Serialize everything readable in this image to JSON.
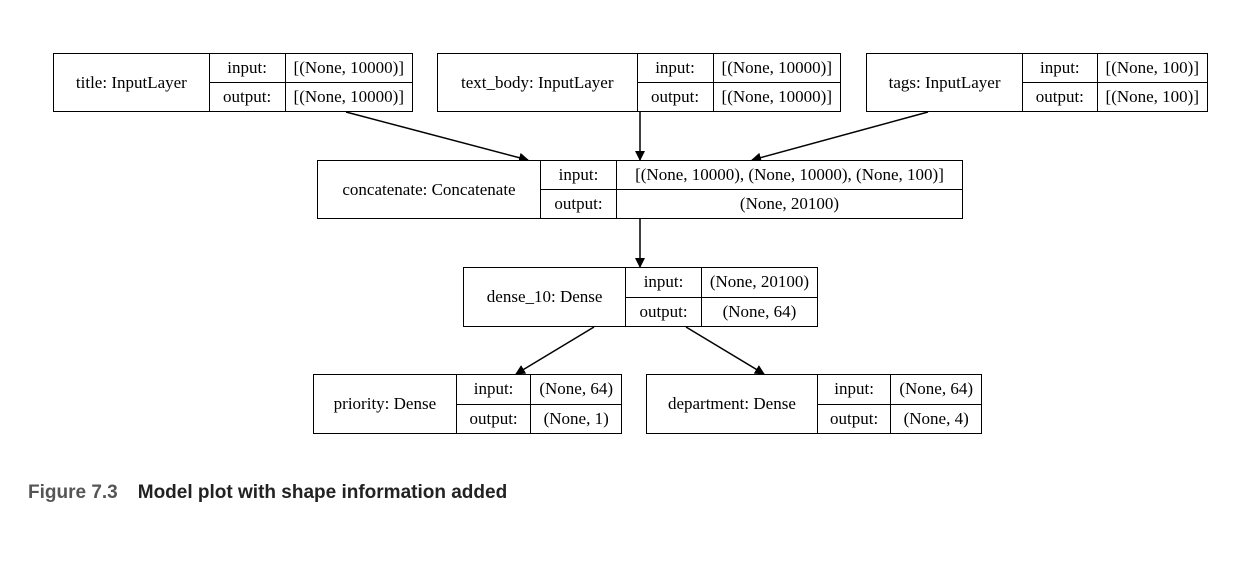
{
  "nodes": {
    "title": {
      "name": "title: InputLayer",
      "input_label": "input:",
      "output_label": "output:",
      "input": "[(None, 10000)]",
      "output": "[(None, 10000)]"
    },
    "text_body": {
      "name": "text_body: InputLayer",
      "input_label": "input:",
      "output_label": "output:",
      "input": "[(None, 10000)]",
      "output": "[(None, 10000)]"
    },
    "tags": {
      "name": "tags: InputLayer",
      "input_label": "input:",
      "output_label": "output:",
      "input": "[(None, 100)]",
      "output": "[(None, 100)]"
    },
    "concatenate": {
      "name": "concatenate: Concatenate",
      "input_label": "input:",
      "output_label": "output:",
      "input": "[(None, 10000), (None, 10000), (None, 100)]",
      "output": "(None, 20100)"
    },
    "dense_10": {
      "name": "dense_10: Dense",
      "input_label": "input:",
      "output_label": "output:",
      "input": "(None, 20100)",
      "output": "(None, 64)"
    },
    "priority": {
      "name": "priority: Dense",
      "input_label": "input:",
      "output_label": "output:",
      "input": "(None, 64)",
      "output": "(None, 1)"
    },
    "department": {
      "name": "department: Dense",
      "input_label": "input:",
      "output_label": "output:",
      "input": "(None, 64)",
      "output": "(None, 4)"
    }
  },
  "edges": [
    [
      "title",
      "concatenate"
    ],
    [
      "text_body",
      "concatenate"
    ],
    [
      "tags",
      "concatenate"
    ],
    [
      "concatenate",
      "dense_10"
    ],
    [
      "dense_10",
      "priority"
    ],
    [
      "dense_10",
      "department"
    ]
  ],
  "caption": {
    "figure": "Figure 7.3",
    "text": "Model plot with shape information added"
  }
}
